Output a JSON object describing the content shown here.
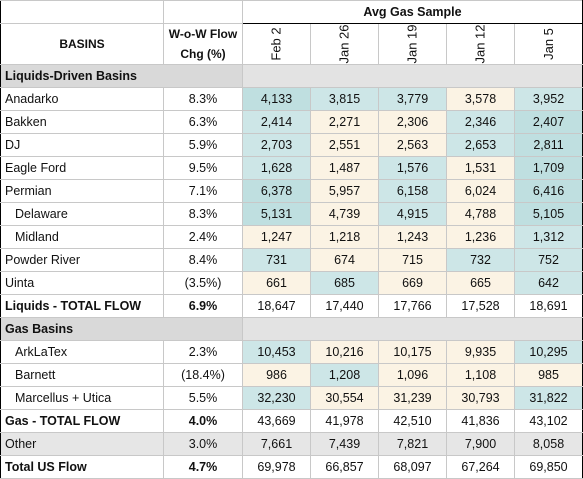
{
  "header": {
    "avg_label": "Avg Gas Sample",
    "basins_label": "BASINS",
    "wow_label_line1": "W-o-W Flow",
    "wow_label_line2": "Chg (%)",
    "dates": [
      "Feb 2",
      "Jan 26",
      "Jan 19",
      "Jan 12",
      "Jan 5"
    ]
  },
  "sections": {
    "liquids_title": "Liquids-Driven Basins",
    "gas_title": "Gas Basins"
  },
  "liquids_rows": [
    {
      "name": "Anadarko",
      "wow": "8.3%",
      "values": [
        "4,133",
        "3,815",
        "3,779",
        "3,578",
        "3,952"
      ],
      "tones": [
        "hm-high",
        "hm-blue",
        "hm-blue",
        "hm-low",
        "hm-blue"
      ]
    },
    {
      "name": "Bakken",
      "wow": "6.3%",
      "values": [
        "2,414",
        "2,271",
        "2,306",
        "2,346",
        "2,407"
      ],
      "tones": [
        "hm-blue",
        "hm-low",
        "hm-low",
        "hm-blue",
        "hm-high"
      ]
    },
    {
      "name": "DJ",
      "wow": "5.9%",
      "values": [
        "2,703",
        "2,551",
        "2,563",
        "2,653",
        "2,811"
      ],
      "tones": [
        "hm-blue",
        "hm-low",
        "hm-low",
        "hm-blue",
        "hm-high"
      ]
    },
    {
      "name": "Eagle Ford",
      "wow": "9.5%",
      "values": [
        "1,628",
        "1,487",
        "1,576",
        "1,531",
        "1,709"
      ],
      "tones": [
        "hm-blue",
        "hm-low",
        "hm-blue",
        "hm-low",
        "hm-high"
      ]
    },
    {
      "name": "Permian",
      "wow": "7.1%",
      "values": [
        "6,378",
        "5,957",
        "6,158",
        "6,024",
        "6,416"
      ],
      "tones": [
        "hm-high",
        "hm-low",
        "hm-blue",
        "hm-low",
        "hm-high"
      ]
    },
    {
      "name": "Delaware",
      "wow": "8.3%",
      "indent": true,
      "values": [
        "5,131",
        "4,739",
        "4,915",
        "4,788",
        "5,105"
      ],
      "tones": [
        "hm-high",
        "hm-low",
        "hm-blue",
        "hm-low",
        "hm-high"
      ]
    },
    {
      "name": "Midland",
      "wow": "2.4%",
      "indent": true,
      "values": [
        "1,247",
        "1,218",
        "1,243",
        "1,236",
        "1,312"
      ],
      "tones": [
        "hm-low",
        "hm-low",
        "hm-low",
        "hm-low",
        "hm-blue"
      ]
    },
    {
      "name": "Powder River",
      "wow": "8.4%",
      "values": [
        "731",
        "674",
        "715",
        "732",
        "752"
      ],
      "tones": [
        "hm-blue",
        "hm-low",
        "hm-low",
        "hm-blue",
        "hm-blue"
      ]
    },
    {
      "name": "Uinta",
      "wow": "(3.5%)",
      "values": [
        "661",
        "685",
        "669",
        "665",
        "642"
      ],
      "tones": [
        "hm-low",
        "hm-blue",
        "hm-low",
        "hm-low",
        "hm-blue"
      ]
    }
  ],
  "liquids_total": {
    "name": "Liquids - TOTAL FLOW",
    "wow": "6.9%",
    "values": [
      "18,647",
      "17,440",
      "17,766",
      "17,528",
      "18,691"
    ]
  },
  "gas_rows": [
    {
      "name": "ArkLaTex",
      "wow": "2.3%",
      "indent": true,
      "values": [
        "10,453",
        "10,216",
        "10,175",
        "9,935",
        "10,295"
      ],
      "tones": [
        "hm-blue",
        "hm-low",
        "hm-low",
        "hm-low",
        "hm-blue"
      ]
    },
    {
      "name": "Barnett",
      "wow": "(18.4%)",
      "indent": true,
      "values": [
        "986",
        "1,208",
        "1,096",
        "1,108",
        "985"
      ],
      "tones": [
        "hm-low",
        "hm-blue",
        "hm-low",
        "hm-low",
        "hm-low"
      ]
    },
    {
      "name": "Marcellus + Utica",
      "wow": "5.5%",
      "indent": true,
      "values": [
        "32,230",
        "30,554",
        "31,239",
        "30,793",
        "31,822"
      ],
      "tones": [
        "hm-blue",
        "hm-low",
        "hm-low",
        "hm-low",
        "hm-blue"
      ]
    }
  ],
  "gas_total": {
    "name": "Gas - TOTAL FLOW",
    "wow": "4.0%",
    "values": [
      "43,669",
      "41,978",
      "42,510",
      "41,836",
      "43,102"
    ]
  },
  "other_row": {
    "name": "Other",
    "wow": "3.0%",
    "values": [
      "7,661",
      "7,439",
      "7,821",
      "7,900",
      "8,058"
    ]
  },
  "us_total": {
    "name": "Total US Flow",
    "wow": "4.7%",
    "values": [
      "69,978",
      "66,857",
      "68,097",
      "67,264",
      "69,850"
    ]
  }
}
